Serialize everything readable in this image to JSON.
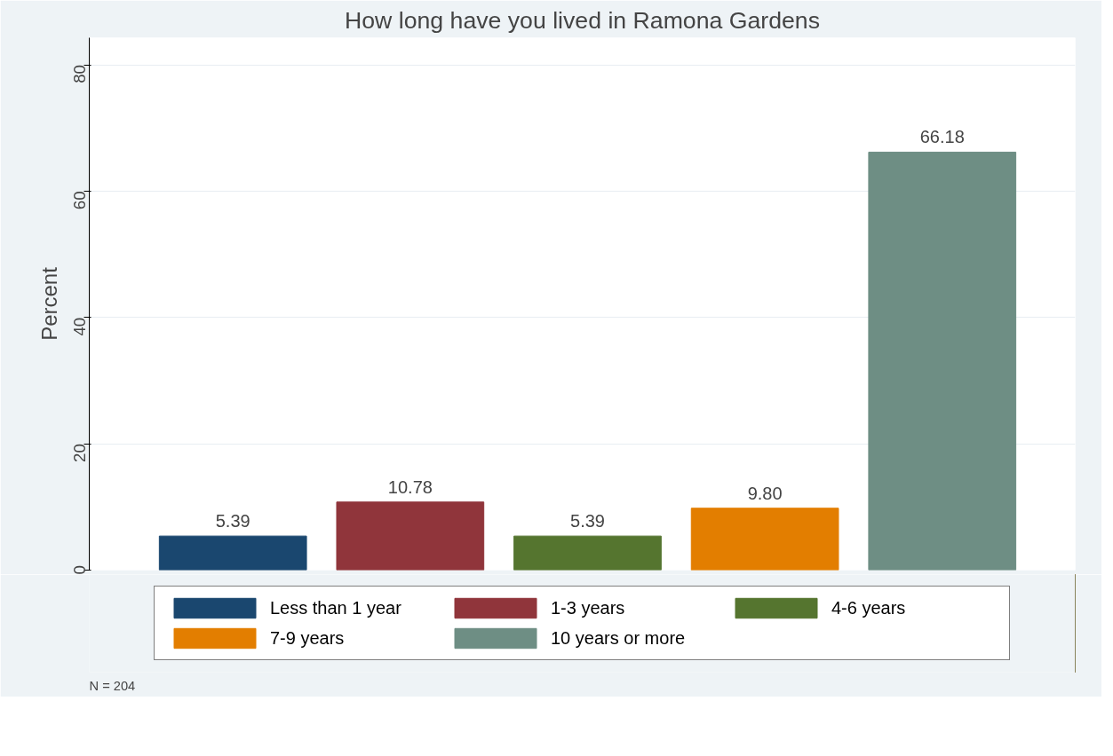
{
  "chart_data": {
    "type": "bar",
    "title": "How long have you lived in Ramona Gardens",
    "ylabel": "Percent",
    "categories": [
      null,
      null,
      null,
      null,
      null
    ],
    "series": [
      {
        "name": "Less than 1 year",
        "color": "#1a476f",
        "values": [
          5.39,
          null,
          null,
          null,
          null
        ]
      },
      {
        "name": "1-3 years",
        "color": "#90353b",
        "values": [
          null,
          10.78,
          null,
          null,
          null
        ]
      },
      {
        "name": "4-6 years",
        "color": "#55752f",
        "values": [
          null,
          null,
          5.39,
          null,
          null
        ]
      },
      {
        "name": "7-9 years",
        "color": "#e37e00",
        "values": [
          null,
          null,
          null,
          9.8,
          null
        ]
      },
      {
        "name": "10 years or more",
        "color": "#6e8e84",
        "values": [
          null,
          null,
          null,
          null,
          66.18
        ]
      }
    ],
    "value_labels": [
      "5.39",
      "10.78",
      "5.39",
      "9.80",
      "66.18"
    ],
    "ylim": [
      0,
      84.3
    ],
    "yticks": [
      0,
      20,
      40,
      60,
      80
    ],
    "grid": "y",
    "legend": "bottom",
    "annotations": [
      "N = 204"
    ]
  }
}
